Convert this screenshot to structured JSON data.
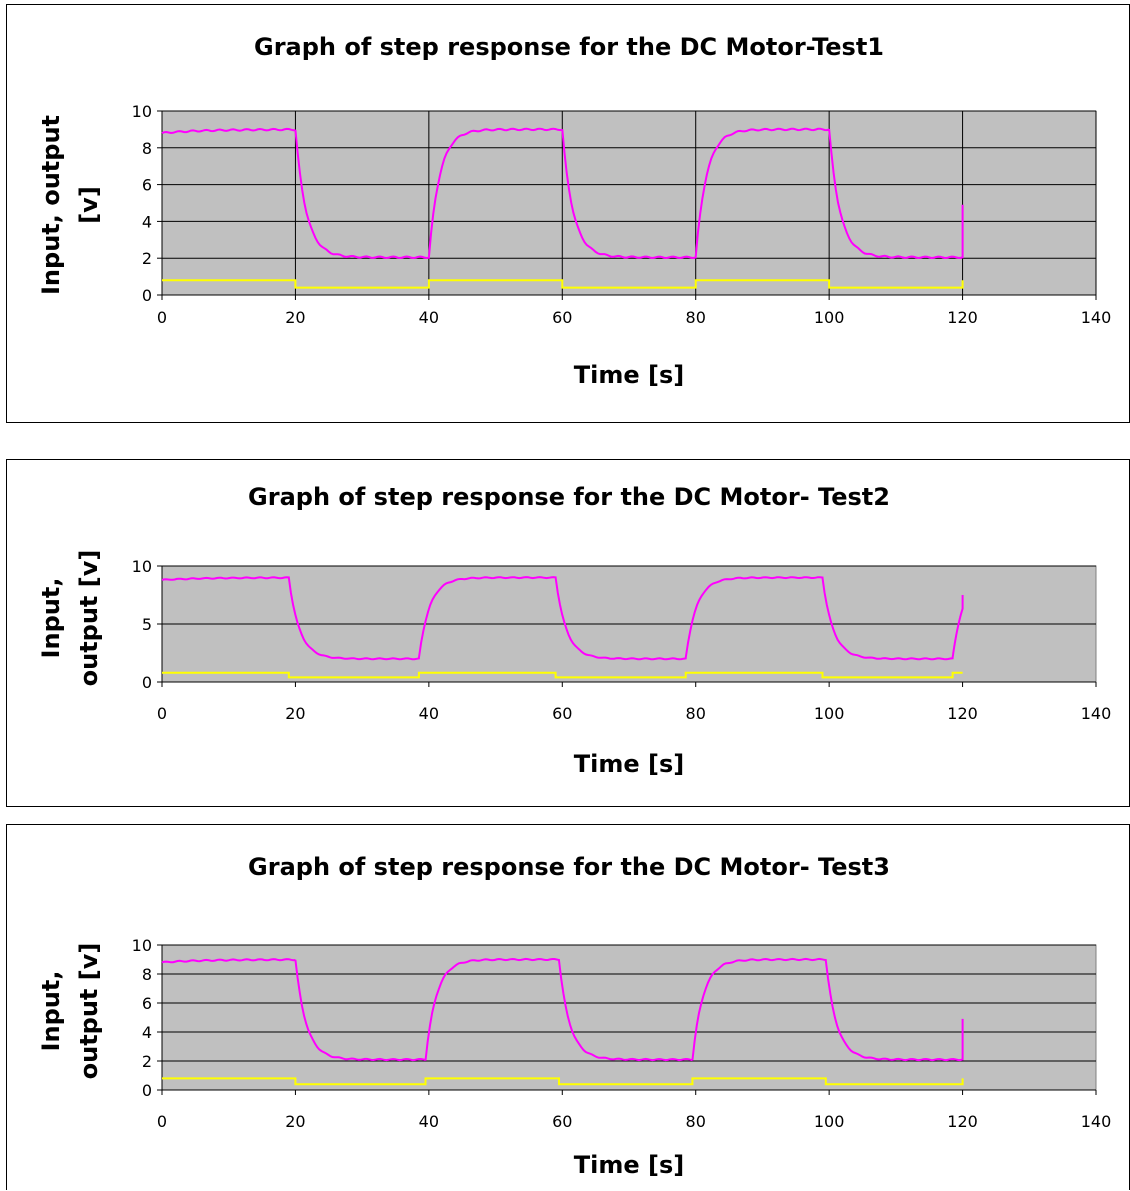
{
  "colors": {
    "plot_bg": "#c0c0c0",
    "output": "#ff00ff",
    "input": "#ffff00",
    "grid": "#000000"
  },
  "chart_data": [
    {
      "type": "line",
      "title": "Graph of step response for the DC Motor-Test1",
      "xlabel": "Time [s]",
      "ylabel_lines": [
        "Input, output",
        "[v]"
      ],
      "xlim": [
        0,
        140
      ],
      "ylim": [
        0,
        10
      ],
      "x_ticks": [
        0,
        20,
        40,
        60,
        80,
        100,
        120,
        140
      ],
      "y_ticks": [
        0,
        2,
        4,
        6,
        8,
        10
      ],
      "grid": "horizontal and vertical",
      "steps": [
        {
          "start": 0,
          "high": true,
          "output_start": 8.8
        },
        {
          "start": 20,
          "high": false
        },
        {
          "start": 40,
          "high": true
        },
        {
          "start": 60,
          "high": false
        },
        {
          "start": 80,
          "high": true
        },
        {
          "start": 100,
          "high": false
        }
      ],
      "output_high": 9.0,
      "output_low": 2.05,
      "input_high": 0.8,
      "input_low": 0.4,
      "end_time": 120,
      "end_output_rise": 4.9,
      "series": [
        {
          "color": "#ff00ff",
          "role": "output"
        },
        {
          "color": "#ffff00",
          "role": "input"
        }
      ]
    },
    {
      "type": "line",
      "title": "Graph of step response for the DC Motor- Test2",
      "xlabel": "Time [s]",
      "ylabel_lines": [
        "Input,",
        "output [v]"
      ],
      "xlim": [
        0,
        140
      ],
      "ylim": [
        0,
        10
      ],
      "x_ticks": [
        0,
        20,
        40,
        60,
        80,
        100,
        120,
        140
      ],
      "y_ticks": [
        0,
        5,
        10
      ],
      "grid": "horizontal",
      "steps": [
        {
          "start": 0,
          "high": true,
          "output_start": 8.8
        },
        {
          "start": 19,
          "high": false
        },
        {
          "start": 38.5,
          "high": true
        },
        {
          "start": 59,
          "high": false
        },
        {
          "start": 78.5,
          "high": true
        },
        {
          "start": 99,
          "high": false
        },
        {
          "start": 118.5,
          "high": true
        }
      ],
      "output_high": 9.0,
      "output_low": 2.0,
      "input_high": 0.8,
      "input_low": 0.4,
      "end_time": 120,
      "end_output_rise": 7.5,
      "series": [
        {
          "color": "#ff00ff",
          "role": "output"
        },
        {
          "color": "#ffff00",
          "role": "input"
        }
      ]
    },
    {
      "type": "line",
      "title": "Graph of step response for the DC Motor- Test3",
      "xlabel": "Time [s]",
      "ylabel_lines": [
        "Input,",
        "output [v]"
      ],
      "xlim": [
        0,
        140
      ],
      "ylim": [
        0,
        10
      ],
      "x_ticks": [
        0,
        20,
        40,
        60,
        80,
        100,
        120,
        140
      ],
      "y_ticks": [
        0,
        2,
        4,
        6,
        8,
        10
      ],
      "grid": "horizontal",
      "steps": [
        {
          "start": 0,
          "high": true,
          "output_start": 8.8
        },
        {
          "start": 20,
          "high": false
        },
        {
          "start": 39.5,
          "high": true
        },
        {
          "start": 59.5,
          "high": false
        },
        {
          "start": 79.5,
          "high": true
        },
        {
          "start": 99.5,
          "high": false
        }
      ],
      "output_high": 9.0,
      "output_low": 2.1,
      "input_high": 0.8,
      "input_low": 0.4,
      "end_time": 120,
      "end_output_rise": 4.9,
      "series": [
        {
          "color": "#ff00ff",
          "role": "output"
        },
        {
          "color": "#ffff00",
          "role": "input"
        }
      ]
    }
  ]
}
